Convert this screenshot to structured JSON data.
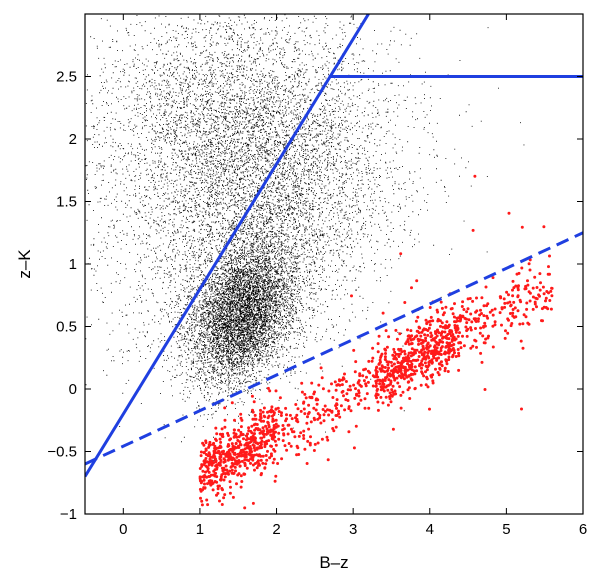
{
  "chart_data": {
    "type": "scatter",
    "xlabel": "B–z",
    "ylabel": "z–K",
    "xlim": [
      -0.5,
      6
    ],
    "ylim": [
      -1,
      3
    ],
    "xticks": [
      0,
      1,
      2,
      3,
      4,
      5,
      6
    ],
    "yticks": [
      -1,
      -0.5,
      0,
      0.5,
      1,
      1.5,
      2,
      2.5
    ],
    "xtick_labels": [
      "0",
      "1",
      "2",
      "3",
      "4",
      "5",
      "6"
    ],
    "ytick_labels": [
      "−1",
      "−0.5",
      "0",
      "0.5",
      "1",
      "1.5",
      "2",
      "2.5"
    ],
    "grid": false,
    "series": [
      {
        "color": "#000000",
        "marker": "dot",
        "count": 15000,
        "components": [
          {
            "weight": 0.4,
            "center": [
              1.55,
              0.6
            ],
            "sd": [
              0.35,
              0.28
            ],
            "corr": 0.3
          },
          {
            "weight": 0.35,
            "center": [
              1.8,
              1.4
            ],
            "sd": [
              0.9,
              0.55
            ],
            "corr": 0.3
          },
          {
            "weight": 0.25,
            "center": [
              1.3,
              2.2
            ],
            "sd": [
              0.9,
              0.45
            ],
            "corr": 0.1
          }
        ]
      },
      {
        "color": "#ff1a1a",
        "marker": "circle",
        "count": 1500,
        "trend": {
          "x_range": [
            1.0,
            5.6
          ],
          "slope": 0.33,
          "intercept": -1.0,
          "scatter": 0.13
        },
        "dense_regions": [
          [
            1.0,
            2.0,
            -0.75,
            -0.25
          ],
          [
            3.3,
            4.4,
            0.15,
            0.45
          ]
        ]
      }
    ],
    "lines": [
      {
        "style": "solid",
        "color": "#1f3fe0",
        "from": [
          -0.5,
          -0.7
        ],
        "to": [
          3.2,
          3.0
        ]
      },
      {
        "style": "solid",
        "color": "#1f3fe0",
        "from": [
          2.68,
          2.5
        ],
        "to": [
          6.0,
          2.5
        ]
      },
      {
        "style": "dashed",
        "color": "#1f3fe0",
        "from": [
          -0.5,
          -0.6
        ],
        "to": [
          6.0,
          1.25
        ]
      }
    ]
  }
}
